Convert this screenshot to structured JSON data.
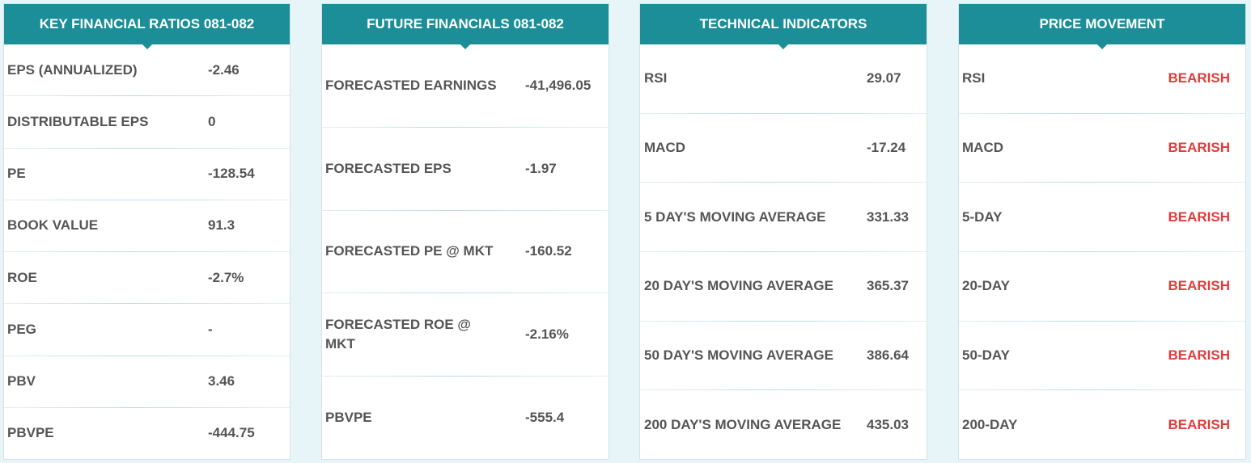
{
  "panels": [
    {
      "title": "KEY FINANCIAL RATIOS 081-082",
      "rows": [
        {
          "label": "EPS (ANNUALIZED)",
          "value": "-2.46"
        },
        {
          "label": "DISTRIBUTABLE EPS",
          "value": "0"
        },
        {
          "label": "PE",
          "value": "-128.54"
        },
        {
          "label": "BOOK VALUE",
          "value": "91.3"
        },
        {
          "label": "ROE",
          "value": "-2.7%"
        },
        {
          "label": "PEG",
          "value": "-"
        },
        {
          "label": "PBV",
          "value": "3.46"
        },
        {
          "label": "PBVPE",
          "value": "-444.75"
        }
      ]
    },
    {
      "title": "FUTURE FINANCIALS 081-082",
      "rows": [
        {
          "label": "FORECASTED EARNINGS",
          "value": "-41,496.05"
        },
        {
          "label": "FORECASTED EPS",
          "value": "-1.97"
        },
        {
          "label": "FORECASTED PE @ MKT",
          "value": "-160.52"
        },
        {
          "label": "FORECASTED ROE @ MKT",
          "value": "-2.16%"
        },
        {
          "label": "PBVPE",
          "value": "-555.4"
        }
      ]
    },
    {
      "title": "TECHNICAL INDICATORS",
      "rows": [
        {
          "label": "RSI",
          "value": "29.07"
        },
        {
          "label": "MACD",
          "value": "-17.24"
        },
        {
          "label": "5 DAY'S MOVING AVERAGE",
          "value": "331.33"
        },
        {
          "label": "20 DAY'S MOVING AVERAGE",
          "value": "365.37"
        },
        {
          "label": "50 DAY'S MOVING AVERAGE",
          "value": "386.64"
        },
        {
          "label": "200 DAY'S MOVING AVERAGE",
          "value": "435.03"
        }
      ]
    },
    {
      "title": "PRICE MOVEMENT",
      "rows": [
        {
          "label": "RSI",
          "value": "BEARISH"
        },
        {
          "label": "MACD",
          "value": "BEARISH"
        },
        {
          "label": "5-DAY",
          "value": "BEARISH"
        },
        {
          "label": "20-DAY",
          "value": "BEARISH"
        },
        {
          "label": "50-DAY",
          "value": "BEARISH"
        },
        {
          "label": "200-DAY",
          "value": "BEARISH"
        }
      ]
    }
  ],
  "colors": {
    "header_bg": "#1b8e97",
    "bearish": "#e03c3c",
    "text": "#555555",
    "page_bg": "#e8f5f8"
  }
}
